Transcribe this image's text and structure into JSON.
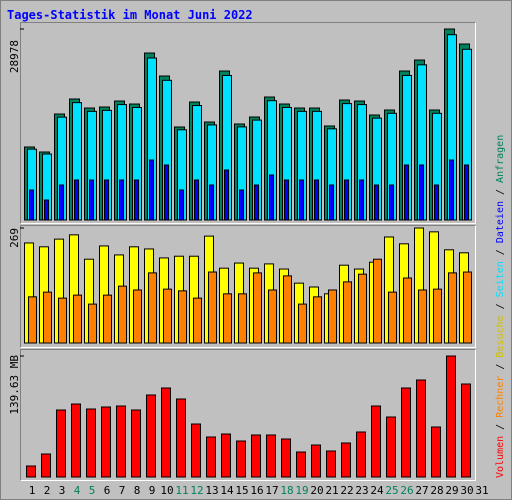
{
  "chart_data": [
    {
      "type": "bar",
      "title": "Tages-Statistik im Monat Juni 2022",
      "title_color": "#0000FF",
      "series": [
        {
          "name": "Anfragen",
          "color": "#00805C",
          "values": [
            11075,
            10316,
            16081,
            18357,
            16991,
            17143,
            18053,
            17598,
            25335,
            21846,
            14109,
            17901,
            14867,
            22604,
            14564,
            15626,
            18660,
            17598,
            16991,
            16991,
            14261,
            18205,
            18053,
            15929,
            16688,
            22604,
            24273,
            16688,
            28978,
            26701,
            null
          ]
        },
        {
          "name": "Dateien",
          "color": "#0000FF",
          "values": [
            4551,
            3034,
            5310,
            6068,
            6068,
            6068,
            6068,
            6068,
            9102,
            8344,
            4551,
            6068,
            5310,
            7585,
            4551,
            5310,
            6827,
            6068,
            6068,
            6068,
            5310,
            6068,
            6068,
            5310,
            5310,
            8344,
            8344,
            5310,
            9102,
            8344,
            null
          ]
        },
        {
          "name": "Seiten",
          "color": "#00E0FF",
          "values": [
            10743,
            10007,
            15599,
            17806,
            16481,
            16629,
            17511,
            17070,
            24575,
            21191,
            13686,
            17364,
            14421,
            21926,
            14127,
            15157,
            18100,
            17070,
            16481,
            16481,
            13833,
            17659,
            17511,
            15451,
            16187,
            21926,
            23545,
            16187,
            28109,
            25900,
            null
          ]
        }
      ],
      "ylim": [
        0,
        28978
      ],
      "yticks": [
        28978
      ]
    },
    {
      "type": "bar",
      "series": [
        {
          "name": "Besuche",
          "color": "#FFFF00",
          "legend_color": "#D0C000",
          "values": [
            234,
            225,
            243,
            253,
            196,
            227,
            206,
            225,
            220,
            199,
            203,
            203,
            250,
            175,
            187,
            175,
            185,
            173,
            140,
            131,
            115,
            182,
            173,
            189,
            248,
            232,
            269,
            260,
            218,
            211,
            null
          ]
        },
        {
          "name": "Rechner",
          "color": "#FF8000",
          "values": [
            108,
            119,
            105,
            112,
            91,
            112,
            133,
            124,
            164,
            126,
            122,
            105,
            166,
            115,
            115,
            164,
            124,
            157,
            91,
            108,
            124,
            143,
            161,
            196,
            119,
            152,
            124,
            126,
            164,
            166,
            null
          ]
        }
      ],
      "ylim": [
        0,
        269
      ],
      "yticks": [
        269
      ]
    },
    {
      "type": "bar",
      "categories": [
        "1",
        "2",
        "3",
        "4",
        "5",
        "6",
        "7",
        "8",
        "9",
        "10",
        "11",
        "12",
        "13",
        "14",
        "15",
        "16",
        "17",
        "18",
        "19",
        "20",
        "21",
        "22",
        "23",
        "24",
        "25",
        "26",
        "27",
        "28",
        "29",
        "30",
        "31"
      ],
      "category_colors": [
        "#000000",
        "#000000",
        "#000000",
        "#00805C",
        "#00805C",
        "#000000",
        "#000000",
        "#000000",
        "#000000",
        "#000000",
        "#00805C",
        "#00805C",
        "#000000",
        "#000000",
        "#000000",
        "#000000",
        "#000000",
        "#00805C",
        "#00805C",
        "#000000",
        "#000000",
        "#000000",
        "#000000",
        "#000000",
        "#00805C",
        "#00805C",
        "#000000",
        "#000000",
        "#000000",
        "#000000",
        "#000000"
      ],
      "series": [
        {
          "name": "Volumen",
          "color": "#FF0000",
          "values": [
            12.69,
            26.54,
            77.32,
            84.24,
            78.47,
            80.78,
            81.93,
            77.32,
            94.63,
            102.71,
            90.01,
            61.16,
            46.16,
            49.62,
            41.54,
            48.47,
            48.47,
            43.85,
            28.85,
            36.93,
            30,
            39.24,
            51.93,
            81.93,
            69.24,
            102.71,
            111.94,
            57.7,
            139.63,
            107.32,
            null
          ]
        }
      ],
      "ylim": [
        0,
        139.63
      ],
      "yticks": [
        {
          "value": 139.63,
          "label": "139.63 MB"
        }
      ]
    }
  ],
  "legend_separator": " / "
}
